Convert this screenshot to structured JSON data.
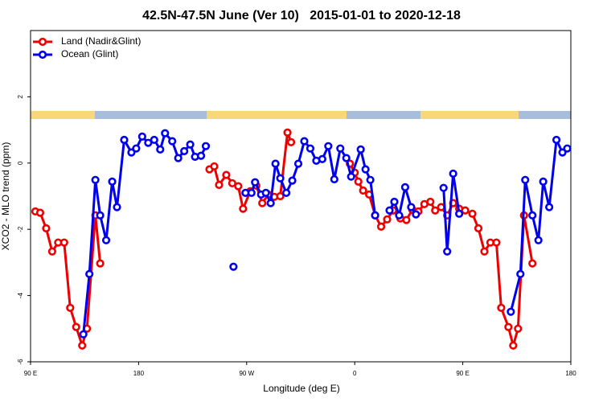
{
  "chart_data": {
    "type": "line",
    "title": "42.5N-47.5N June (Ver 10)   2015-01-01 to 2020-12-18",
    "x_label": "Longitude (deg E)",
    "y_label": "XCO2 - MLO trend (ppm)",
    "xlim": [
      90,
      540
    ],
    "ylim": [
      -6,
      4
    ],
    "xticks": [
      {
        "value": 90,
        "label": "90 E"
      },
      {
        "value": 180,
        "label": "180"
      },
      {
        "value": 270,
        "label": "90 W"
      },
      {
        "value": 360,
        "label": "0"
      },
      {
        "value": 450,
        "label": "90 E"
      },
      {
        "value": 540,
        "label": "180"
      }
    ],
    "yticks": [
      -6,
      -4,
      -2,
      0,
      2
    ],
    "legend_position": "top-left",
    "series": [
      {
        "name": "Land (Nadir&Glint)",
        "color": "#ee0000",
        "x": [
          94,
          98,
          103,
          108,
          113,
          118,
          123,
          128,
          133,
          137,
          144,
          148,
          null,
          239,
          243,
          247,
          253,
          258,
          263,
          267,
          273,
          278,
          283,
          288,
          293,
          298,
          304,
          307,
          null,
          356,
          360,
          363,
          367,
          372,
          377,
          382,
          387,
          392,
          398,
          403,
          408,
          413,
          418,
          423,
          427,
          432,
          437,
          442,
          447,
          452,
          458,
          463,
          468,
          473,
          478,
          482,
          488,
          492,
          496,
          501,
          508
        ],
        "values": [
          -1.46,
          -1.5,
          -1.97,
          -2.67,
          -2.4,
          -2.4,
          -4.37,
          -4.95,
          -5.51,
          -5.0,
          -1.58,
          -3.03,
          null,
          -0.19,
          -0.1,
          -0.66,
          -0.36,
          -0.61,
          -0.7,
          -1.38,
          -0.85,
          -0.68,
          -1.21,
          -0.95,
          -1.02,
          -1.0,
          0.92,
          0.63,
          null,
          -0.02,
          -0.29,
          -0.56,
          -0.83,
          -0.95,
          -1.58,
          -1.92,
          -1.7,
          -1.43,
          -1.67,
          -1.72,
          -1.41,
          -1.46,
          -1.24,
          -1.17,
          -1.43,
          -1.33,
          -1.58,
          -1.21,
          -1.38,
          -1.43,
          -1.53,
          -1.97,
          -2.67,
          -2.4,
          -2.4,
          -4.37,
          -4.95,
          -5.51,
          -5.0,
          -1.58,
          -3.03
        ]
      },
      {
        "name": "Ocean (Glint)",
        "color": "#0000ee",
        "x": [
          134,
          139,
          144,
          148,
          153,
          158,
          162,
          168,
          174,
          178,
          183,
          188,
          193,
          198,
          202,
          208,
          213,
          218,
          223,
          227,
          232,
          236,
          null,
          259,
          null,
          269,
          274,
          277,
          282,
          286,
          290,
          294,
          298,
          303,
          308,
          313,
          318,
          323,
          328,
          333,
          338,
          343,
          348,
          353,
          357,
          365,
          369,
          373,
          377,
          null,
          389,
          393,
          397,
          402,
          407,
          411,
          null,
          434,
          437,
          442,
          447,
          null,
          490,
          498,
          502,
          508,
          513,
          517,
          522,
          528,
          533,
          537
        ],
        "values": [
          -5.17,
          -3.35,
          -0.51,
          -1.58,
          -2.33,
          -0.56,
          -1.33,
          0.7,
          0.32,
          0.44,
          0.8,
          0.61,
          0.7,
          0.41,
          0.9,
          0.66,
          0.15,
          0.36,
          0.56,
          0.19,
          0.22,
          0.51,
          null,
          -3.13,
          null,
          -0.9,
          -0.9,
          -0.58,
          -0.95,
          -0.9,
          -1.21,
          -0.02,
          -0.46,
          -0.9,
          -0.53,
          -0.02,
          0.66,
          0.44,
          0.07,
          0.12,
          0.51,
          -0.49,
          0.44,
          0.15,
          -0.41,
          0.41,
          -0.19,
          -0.51,
          -1.58,
          null,
          -1.43,
          -1.17,
          -1.58,
          -0.73,
          -1.33,
          -1.55,
          null,
          -0.75,
          -2.67,
          -0.32,
          -1.53,
          null,
          -4.49,
          -3.35,
          -0.51,
          -1.58,
          -2.33,
          -0.56,
          -1.33,
          0.7,
          0.32,
          0.44
        ]
      }
    ]
  }
}
